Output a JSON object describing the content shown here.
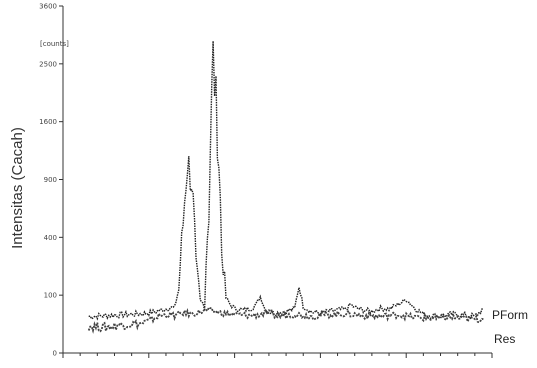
{
  "chart_data": {
    "type": "line",
    "ylabel": "Intensitas (Cacah)",
    "yunit": "[counts]",
    "ytick_labels": [
      "0",
      "100",
      "400",
      "900",
      "1600",
      "2500",
      "3600"
    ],
    "ytick_values": [
      0,
      100,
      400,
      900,
      1600,
      2500,
      3600
    ],
    "yscale": "sqrt",
    "ylim": [
      0,
      3600
    ],
    "xlim": [
      0,
      100
    ],
    "xtick_values": [
      0,
      20,
      40,
      60,
      80,
      100
    ],
    "series_label_position": "right",
    "series": [
      {
        "name": "PForm",
        "color": "#222222",
        "x": [
          6,
          10,
          14,
          18,
          20,
          22,
          24,
          25,
          26,
          27,
          28,
          29,
          30,
          31,
          32,
          33,
          34,
          35,
          36,
          37,
          38,
          39,
          40,
          42,
          44,
          45,
          46,
          47,
          48,
          50,
          52,
          54,
          55,
          56,
          58,
          60,
          62,
          64,
          66,
          67,
          68,
          70,
          72,
          74,
          76,
          78,
          80,
          82,
          84,
          86,
          88,
          90,
          92,
          94,
          96,
          98
        ],
        "y": [
          40,
          42,
          44,
          46,
          48,
          52,
          58,
          62,
          60,
          120,
          500,
          1100,
          900,
          220,
          80,
          70,
          600,
          2600,
          1500,
          300,
          90,
          70,
          60,
          55,
          60,
          70,
          95,
          60,
          50,
          48,
          52,
          58,
          130,
          65,
          50,
          48,
          52,
          55,
          58,
          70,
          62,
          55,
          52,
          60,
          58,
          70,
          85,
          60,
          45,
          42,
          40,
          44,
          46,
          42,
          40,
          58
        ]
      },
      {
        "name": "Res",
        "color": "#444444",
        "x": [
          6,
          10,
          14,
          18,
          20,
          22,
          24,
          26,
          28,
          30,
          32,
          34,
          36,
          38,
          40,
          44,
          48,
          50,
          54,
          58,
          62,
          66,
          70,
          74,
          78,
          82,
          86,
          90,
          94,
          98
        ],
        "y": [
          22,
          20,
          24,
          26,
          30,
          40,
          44,
          42,
          48,
          46,
          50,
          55,
          50,
          46,
          44,
          42,
          48,
          40,
          45,
          40,
          44,
          46,
          42,
          40,
          44,
          38,
          36,
          38,
          35,
          34
        ]
      }
    ]
  }
}
